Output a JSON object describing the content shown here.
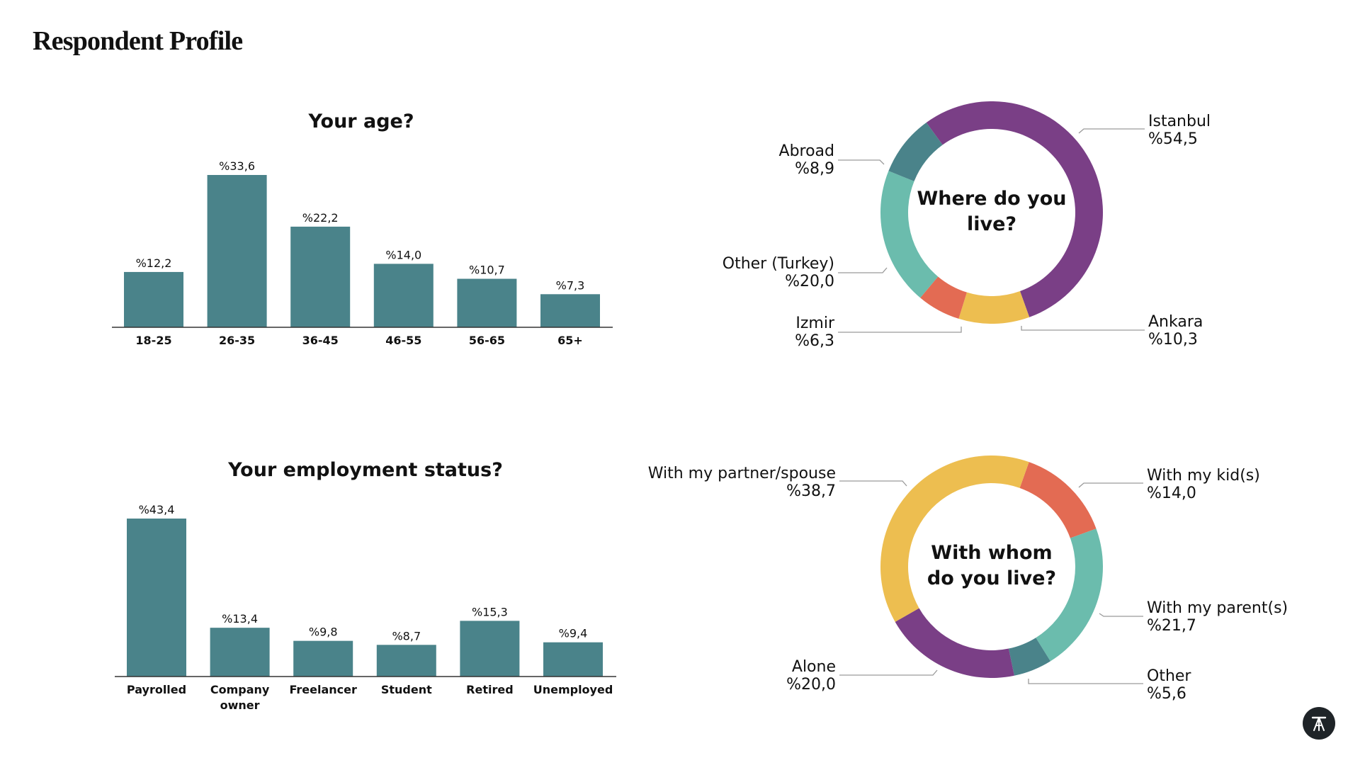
{
  "page": {
    "title": "Respondent Profile"
  },
  "brand": {
    "logo_icon": "stool-logo-icon",
    "logo_bg": "#1f2428"
  },
  "colors": {
    "bar": "#4a838a",
    "purple": "#7a3f86",
    "teal_dark": "#4a838a",
    "teal_light": "#6bbcad",
    "red": "#e36b53",
    "yellow": "#edbe50"
  },
  "chart_data": [
    {
      "type": "bar",
      "title": "Your age?",
      "categories": [
        "18-25",
        "26-35",
        "36-45",
        "46-55",
        "56-65",
        "65+"
      ],
      "values": [
        12.2,
        33.6,
        22.2,
        14.0,
        10.7,
        7.3
      ],
      "value_labels": [
        "%12,2",
        "%33,6",
        "%22,2",
        "%14,0",
        "%10,7",
        "%7,3"
      ],
      "ylim": [
        0,
        33.6
      ],
      "grid": false
    },
    {
      "type": "bar",
      "title": "Your employment status?",
      "categories": [
        "Payrolled",
        "Company owner",
        "Freelancer",
        "Student",
        "Retired",
        "Unemployed"
      ],
      "tick_lines": [
        [
          "Payrolled"
        ],
        [
          "Company",
          "owner"
        ],
        [
          "Freelancer"
        ],
        [
          "Student"
        ],
        [
          "Retired"
        ],
        [
          "Unemployed"
        ]
      ],
      "values": [
        43.4,
        13.4,
        9.8,
        8.7,
        15.3,
        9.4
      ],
      "value_labels": [
        "%43,4",
        "%13,4",
        "%9,8",
        "%8,7",
        "%15,3",
        "%9,4"
      ],
      "ylim": [
        0,
        43.4
      ],
      "grid": false
    },
    {
      "type": "pie",
      "title_lines": [
        "Where do you",
        "live?"
      ],
      "slices": [
        {
          "label": "Istanbul",
          "value": 54.5,
          "value_label": "%54,5",
          "color": "#7a3f86"
        },
        {
          "label": "Ankara",
          "value": 10.3,
          "value_label": "%10,3",
          "color": "#edbe50"
        },
        {
          "label": "Izmir",
          "value": 6.3,
          "value_label": "%6,3",
          "color": "#e36b53"
        },
        {
          "label": "Other (Turkey)",
          "value": 20.0,
          "value_label": "%20,0",
          "color": "#6bbcad"
        },
        {
          "label": "Abroad",
          "value": 8.9,
          "value_label": "%8,9",
          "color": "#4a838a"
        }
      ]
    },
    {
      "type": "pie",
      "title_lines": [
        "With whom",
        "do you live?"
      ],
      "slices": [
        {
          "label": "With my kid(s)",
          "value": 14.0,
          "value_label": "%14,0",
          "color": "#e36b53"
        },
        {
          "label": "With my parent(s)",
          "value": 21.7,
          "value_label": "%21,7",
          "color": "#6bbcad"
        },
        {
          "label": "Other",
          "value": 5.6,
          "value_label": "%5,6",
          "color": "#4a838a"
        },
        {
          "label": "Alone",
          "value": 20.0,
          "value_label": "%20,0",
          "color": "#7a3f86"
        },
        {
          "label": "With my partner/spouse",
          "value": 38.7,
          "value_label": "%38,7",
          "color": "#edbe50"
        }
      ]
    }
  ]
}
